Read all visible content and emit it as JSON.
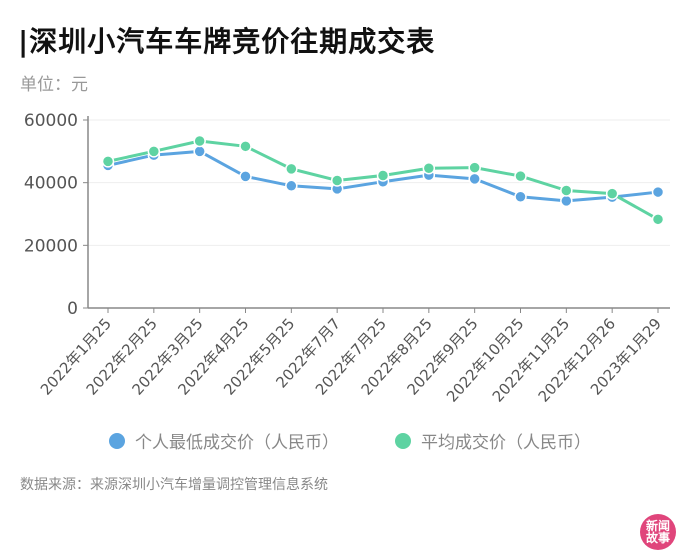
{
  "header": {
    "title": "|深圳小汽车车牌竞价往期成交表",
    "unit": "单位：元"
  },
  "footer": {
    "source": "数据来源：来源深圳小汽车增量调控管理信息系统"
  },
  "logo": {
    "text": "新闻\n故事"
  },
  "colors": {
    "series_low": "#5ba4e0",
    "series_avg": "#5ed3a2",
    "axis": "#888888",
    "grid": "#eeeeee",
    "tick_text": "#555555"
  },
  "chart_data": {
    "type": "line",
    "categories": [
      "2022年1月25",
      "2022年2月25",
      "2022年3月25",
      "2022年4月25",
      "2022年5月25",
      "2022年7月7",
      "2022年7月25",
      "2022年8月25",
      "2022年9月25",
      "2022年10月25",
      "2022年11月25",
      "2022年12月26",
      "2023年1月29"
    ],
    "ylim": [
      0,
      60000
    ],
    "yticks": [
      0,
      20000,
      40000,
      60000
    ],
    "grid": true,
    "legend_position": "bottom",
    "series": [
      {
        "name": "个人最低成交价（人民币）",
        "color": "#5ba4e0",
        "values": [
          45500,
          48800,
          50000,
          42000,
          39000,
          38000,
          40300,
          42400,
          41200,
          35500,
          34200,
          35400,
          37000
        ]
      },
      {
        "name": "平均成交价（人民币）",
        "color": "#5ed3a2",
        "values": [
          46800,
          50000,
          53300,
          51600,
          44400,
          40700,
          42300,
          44600,
          44800,
          42100,
          37500,
          36500,
          28300
        ]
      }
    ]
  }
}
